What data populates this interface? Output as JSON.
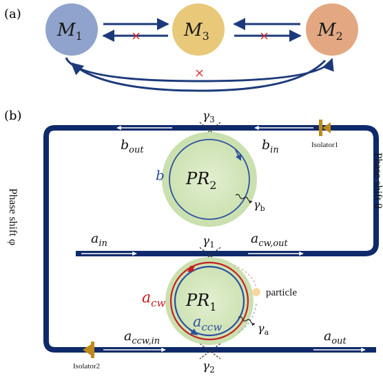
{
  "panel_a": {
    "label": "(a)",
    "nodes": [
      {
        "main": "M",
        "sub": "1",
        "fill": "#8fa3cc"
      },
      {
        "main": "M",
        "sub": "3",
        "fill": "#e8c97a"
      },
      {
        "main": "M",
        "sub": "2",
        "fill": "#e3a882"
      }
    ],
    "cross": "×"
  },
  "panel_b": {
    "label": "(b)",
    "gamma3": {
      "main": "γ",
      "sub": "3"
    },
    "gamma1": {
      "main": "γ",
      "sub": "1"
    },
    "gamma2": {
      "main": "γ",
      "sub": "2"
    },
    "gamma_b": {
      "main": "γ",
      "sub": "b"
    },
    "gamma_a": {
      "main": "γ",
      "sub": "a"
    },
    "b_out": {
      "main": "b",
      "sub": "out"
    },
    "b_in": {
      "main": "b",
      "sub": "in"
    },
    "b_label": "b",
    "pr2": {
      "main": "PR",
      "sub": "2"
    },
    "pr1": {
      "main": "PR",
      "sub": "1"
    },
    "a_in": {
      "main": "a",
      "sub": "in"
    },
    "a_cw_out": {
      "main": "a",
      "sub": "cw,out"
    },
    "a_cw": {
      "main": "a",
      "sub": "cw"
    },
    "a_ccw": {
      "main": "a",
      "sub": "ccw"
    },
    "a_ccw_in": {
      "main": "a",
      "sub": "ccw,in"
    },
    "a_out": {
      "main": "a",
      "sub": "out"
    },
    "particle": "particle",
    "isolator1": "Isolator1",
    "isolator2": "Isolator2",
    "phase_theta": "Phase shift θ",
    "phase_phi": "Phase shift φ"
  },
  "colors": {
    "waveguide": "#0f2a6b",
    "arrow": "#1c3a7a",
    "cross": "#d62b2b",
    "ring_glow": "#cfe3b4",
    "ring_blue": "#2b4fa0",
    "ring_red": "#c41f1f",
    "isolator": "#c08a1a",
    "particle": "#f6d9a0"
  }
}
